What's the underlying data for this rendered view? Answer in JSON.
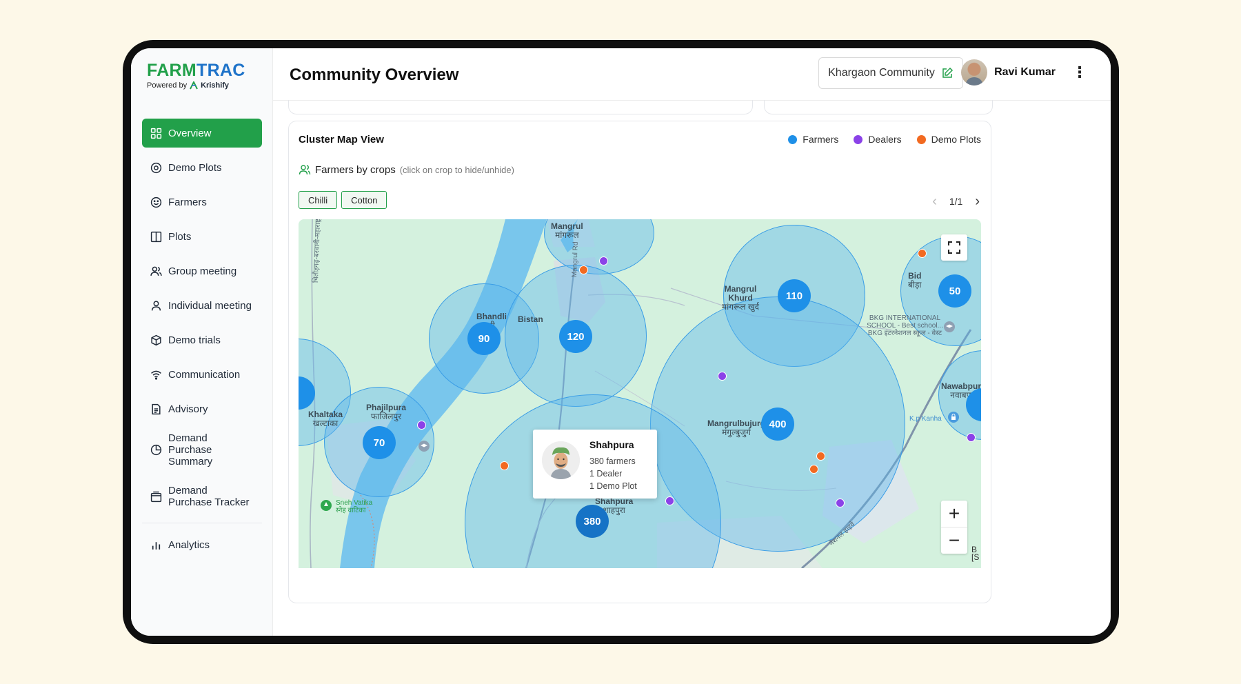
{
  "brand": {
    "name_part1": "FARM",
    "name_part2": "TRAC",
    "powered_by": "Powered by",
    "partner": "Krishify"
  },
  "sidebar": {
    "items": [
      {
        "label": "Overview",
        "icon": "grid-icon",
        "active": true
      },
      {
        "label": "Demo Plots",
        "icon": "target-icon"
      },
      {
        "label": "Farmers",
        "icon": "smile-icon"
      },
      {
        "label": "Plots",
        "icon": "columns-icon"
      },
      {
        "label": "Group meeting",
        "icon": "users-icon"
      },
      {
        "label": "Individual meeting",
        "icon": "user-icon"
      },
      {
        "label": "Demo trials",
        "icon": "cube-icon"
      },
      {
        "label": "Communication",
        "icon": "wifi-icon"
      },
      {
        "label": "Advisory",
        "icon": "document-icon"
      },
      {
        "label": "Demand Purchase Summary",
        "icon": "pie-icon"
      },
      {
        "label": "Demand Purchase Tracker",
        "icon": "wallet-icon"
      }
    ],
    "analytics": {
      "label": "Analytics",
      "icon": "bar-chart-icon"
    }
  },
  "header": {
    "title": "Community Overview",
    "community": "Khargaon Community",
    "user": "Ravi Kumar"
  },
  "map_card": {
    "title": "Cluster Map View",
    "legend": [
      {
        "label": "Farmers",
        "color": "#1e90e8"
      },
      {
        "label": "Dealers",
        "color": "#8b42e8"
      },
      {
        "label": "Demo Plots",
        "color": "#f26a21"
      }
    ],
    "crops_label": "Farmers by crops",
    "crops_hint": "(click on crop to hide/unhide)",
    "crops": [
      "Chilli",
      "Cotton"
    ],
    "pager": "1/1"
  },
  "map": {
    "clusters": [
      "110",
      "50",
      "90",
      "120",
      "70",
      "400",
      "380"
    ],
    "places": {
      "mangrul": "Mangrul",
      "mangrul_hi": "मांगरूल",
      "bhandli": "Bhandli",
      "bhandli_hi": "नी",
      "bistan": "Bistan",
      "mangrul_khurd": "Mangrul Khurd",
      "mangrul_khurd_hi": "मांगरूल खुर्द",
      "bid": "Bid",
      "bid_hi": "बीड़ा",
      "bkg": "BKG INTERNATIONAL SCHOOL - Best school...",
      "bkg_hi": "BKG इंटरनेशनल स्कूल - बेस्ट",
      "phajilpura": "Phajilpura",
      "phajilpura_hi": "फाजिलपुर",
      "khaltaka": "Khaltaka",
      "khaltaka_hi": "खल्टाका",
      "mangrulbujurg": "Mangrulbujurg",
      "mangrulbujurg_hi": "मंगुल्बुजुर्ग",
      "nawabpura": "Nawabpura",
      "nawabpura_hi": "नवाबपुरा",
      "kp_kanha": "K.p Kanha",
      "sneh_vatika": "Sneh Vatika",
      "sneh_vatika_hi": "स्नेह वाटिका",
      "shahpura": "Shahpura",
      "shahpura_hi": "शाहपुरा",
      "road_mangrul": "Mangrul Rd",
      "road_left": "चितौड़गढ़-बरवानी-महाराष्ट्र",
      "road_right": "नेशनल हाइवे",
      "edge_b": "B",
      "edge_s": "[S"
    },
    "popup": {
      "name": "Shahpura",
      "farmers": "380 farmers",
      "dealers": "1 Dealer",
      "demo_plots": "1 Demo Plot"
    }
  }
}
